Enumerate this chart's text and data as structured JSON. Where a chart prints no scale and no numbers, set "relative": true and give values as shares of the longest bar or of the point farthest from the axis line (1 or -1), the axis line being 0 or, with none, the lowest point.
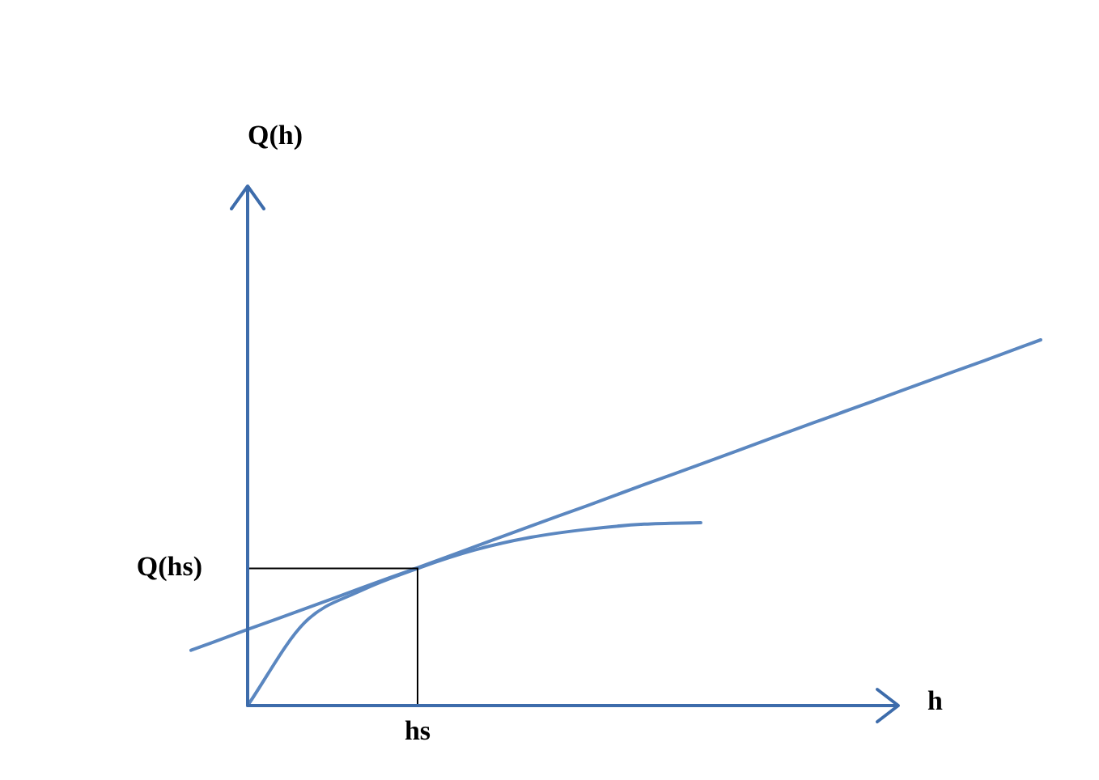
{
  "chart_data": {
    "type": "line",
    "relative": true,
    "xlabel": "h",
    "legend": false,
    "marker": "none",
    "categories": [
      null,
      null,
      null,
      null,
      null,
      null,
      null,
      null,
      null,
      null,
      null,
      null,
      null,
      null,
      null,
      null
    ],
    "annotations": [
      "Q(h)",
      "Q(hs)",
      "hs"
    ],
    "series": [
      {
        "color": "#5b87c0",
        "values": [
          null,
          0,
          0.226,
          0.314,
          0.375,
          0.425,
          0.46,
          0.482,
          0.496,
          0.5,
          null,
          null,
          null,
          null,
          null,
          null
        ]
      },
      {
        "color": "#5b87c0",
        "values": [
          0.151,
          0.208,
          0.264,
          0.321,
          0.377,
          0.434,
          0.491,
          0.547,
          0.604,
          0.66,
          0.717,
          0.774,
          0.83,
          0.887,
          0.943,
          1
        ]
      }
    ]
  }
}
